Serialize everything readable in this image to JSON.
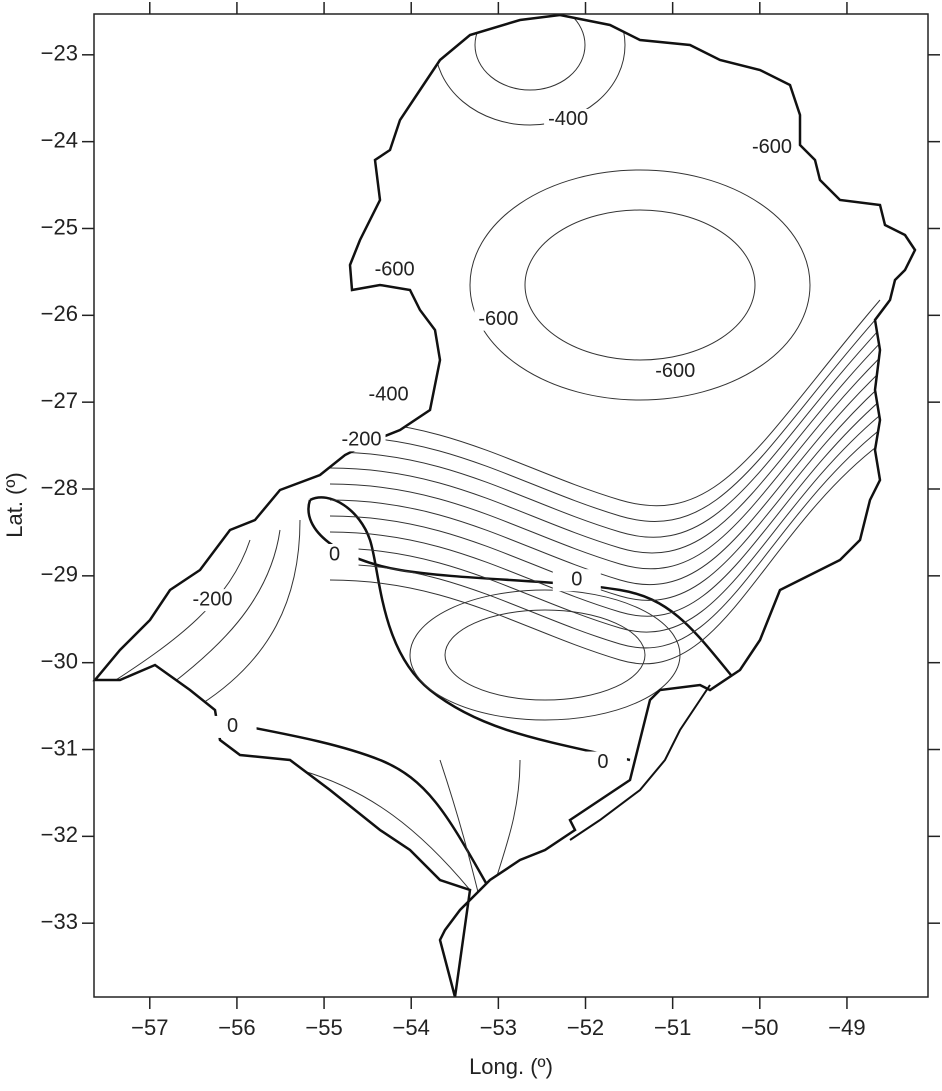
{
  "chart_data": {
    "type": "contour",
    "xlabel": "Long. (º)",
    "ylabel": "Lat. (º)",
    "xlim": [
      -57.64,
      -48.07
    ],
    "ylim": [
      -33.85,
      -22.53
    ],
    "xticks": [
      {
        "value": -57,
        "label": "−57"
      },
      {
        "value": -56,
        "label": "−56"
      },
      {
        "value": -55,
        "label": "−55"
      },
      {
        "value": -54,
        "label": "−54"
      },
      {
        "value": -53,
        "label": "−53"
      },
      {
        "value": -52,
        "label": "−52"
      },
      {
        "value": -51,
        "label": "−51"
      },
      {
        "value": -50,
        "label": "−50"
      },
      {
        "value": -49,
        "label": "−49"
      }
    ],
    "yticks": [
      {
        "value": -23,
        "label": "−23"
      },
      {
        "value": -24,
        "label": "−24"
      },
      {
        "value": -25,
        "label": "−25"
      },
      {
        "value": -26,
        "label": "−26"
      },
      {
        "value": -27,
        "label": "−27"
      },
      {
        "value": -28,
        "label": "−28"
      },
      {
        "value": -29,
        "label": "−29"
      },
      {
        "value": -30,
        "label": "−30"
      },
      {
        "value": -31,
        "label": "−31"
      },
      {
        "value": -32,
        "label": "−32"
      },
      {
        "value": -33,
        "label": "−33"
      }
    ],
    "contour_labels": [
      {
        "text": "-400",
        "x": -52.2,
        "y": -23.75
      },
      {
        "text": "-600",
        "x": -49.86,
        "y": -24.07
      },
      {
        "text": "-600",
        "x": -54.19,
        "y": -25.48
      },
      {
        "text": "-600",
        "x": -53.0,
        "y": -26.05
      },
      {
        "text": "-600",
        "x": -50.97,
        "y": -26.65
      },
      {
        "text": "-400",
        "x": -54.26,
        "y": -26.92
      },
      {
        "text": "-200",
        "x": -54.57,
        "y": -27.44
      },
      {
        "text": "0",
        "x": -54.88,
        "y": -28.76
      },
      {
        "text": "0",
        "x": -52.1,
        "y": -29.05
      },
      {
        "text": "-200",
        "x": -56.28,
        "y": -29.28
      },
      {
        "text": "0",
        "x": -56.05,
        "y": -30.74
      },
      {
        "text": "0",
        "x": -51.8,
        "y": -31.15
      }
    ]
  }
}
